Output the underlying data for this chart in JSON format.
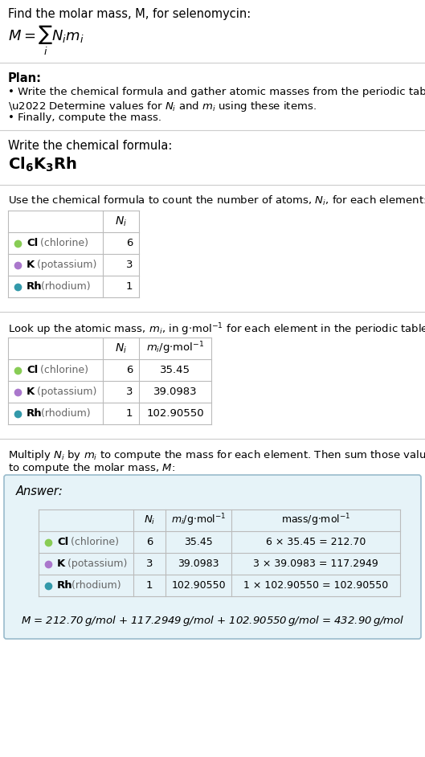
{
  "title_text": "Find the molar mass, M, for selenomycin:",
  "bg_color": "#ffffff",
  "separator_color": "#cccccc",
  "text_color": "#000000",
  "gray_text_color": "#666666",
  "table_border": "#bbbbbb",
  "elements": [
    {
      "symbol": "Cl",
      "name": "chlorine",
      "color": "#88cc55",
      "N": "6",
      "m": "35.45",
      "mass_eq": "6 × 35.45 = 212.70"
    },
    {
      "symbol": "K",
      "name": "potassium",
      "color": "#aa77cc",
      "N": "3",
      "m": "39.0983",
      "mass_eq": "3 × 39.0983 = 117.2949"
    },
    {
      "symbol": "Rh",
      "name": "rhodium",
      "color": "#3399aa",
      "N": "1",
      "m": "102.90550",
      "mass_eq": "1 × 102.90550 = 102.90550"
    }
  ],
  "answer_bg": "#e6f3f8",
  "answer_border": "#99bbcc",
  "final_eq": "M = 212.70 g/mol + 117.2949 g/mol + 102.90550 g/mol = 432.90 g/mol"
}
